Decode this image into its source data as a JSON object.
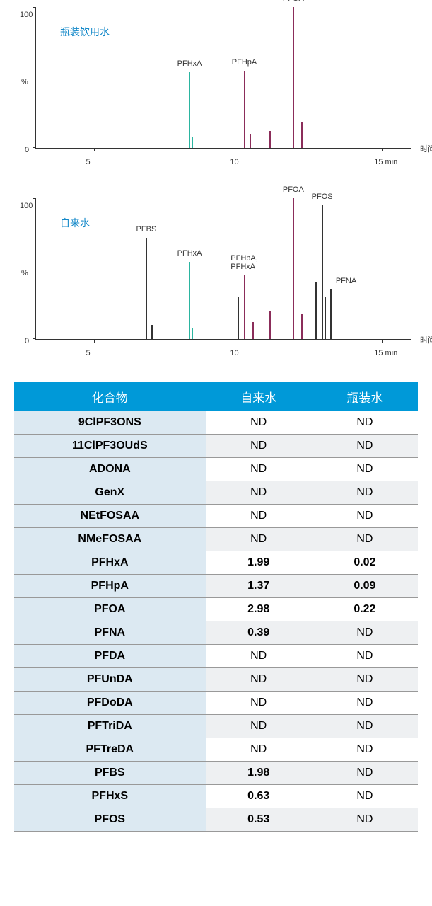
{
  "chart1": {
    "title": "瓶装饮用水",
    "ylabel": "%",
    "ylim": [
      0,
      100
    ],
    "xlim": [
      3,
      16
    ],
    "xticks": [
      5,
      10,
      15
    ],
    "xtick_labels": [
      "5",
      "10",
      "15 min"
    ],
    "x_axis_title": "时间",
    "background_color": "#ffffff",
    "peaks": [
      {
        "name": "PFHxA",
        "x": 8.3,
        "height": 54,
        "color": "#2bb5a0"
      },
      {
        "name": "PFHpA",
        "x": 10.2,
        "height": 55,
        "color": "#8b2d5a"
      },
      {
        "name": "PFOA",
        "x": 11.9,
        "height": 100,
        "color": "#8b2d5a"
      }
    ],
    "minor_peaks": [
      {
        "x": 8.4,
        "height": 8,
        "color": "#2bb5a0"
      },
      {
        "x": 10.4,
        "height": 10,
        "color": "#8b2d5a"
      },
      {
        "x": 11.1,
        "height": 12,
        "color": "#8b2d5a"
      },
      {
        "x": 12.2,
        "height": 18,
        "color": "#8b2d5a"
      }
    ]
  },
  "chart2": {
    "title": "自来水",
    "ylabel": "%",
    "ylim": [
      0,
      100
    ],
    "xlim": [
      3,
      16
    ],
    "xticks": [
      5,
      10,
      15
    ],
    "xtick_labels": [
      "5",
      "10",
      "15 min"
    ],
    "x_axis_title": "时间",
    "background_color": "#ffffff",
    "peaks": [
      {
        "name": "PFBS",
        "x": 6.8,
        "height": 72,
        "color": "#333333"
      },
      {
        "name": "PFHxA",
        "x": 8.3,
        "height": 55,
        "color": "#2bb5a0"
      },
      {
        "name": "PFHpA,\nPFHxA",
        "x": 10.2,
        "height": 45,
        "color": "#8b2d5a",
        "label_offset": -5
      },
      {
        "name": "PFOA",
        "x": 11.9,
        "height": 100,
        "color": "#8b2d5a"
      },
      {
        "name": "PFOS",
        "x": 12.9,
        "height": 95,
        "color": "#333333"
      },
      {
        "name": "PFNA",
        "x": 13.2,
        "height": 35,
        "color": "#333333",
        "label_right": true
      }
    ],
    "minor_peaks": [
      {
        "x": 7.0,
        "height": 10,
        "color": "#333333"
      },
      {
        "x": 8.4,
        "height": 8,
        "color": "#2bb5a0"
      },
      {
        "x": 10.0,
        "height": 30,
        "color": "#333333"
      },
      {
        "x": 10.5,
        "height": 12,
        "color": "#8b2d5a"
      },
      {
        "x": 11.1,
        "height": 20,
        "color": "#8b2d5a"
      },
      {
        "x": 12.2,
        "height": 18,
        "color": "#8b2d5a"
      },
      {
        "x": 12.7,
        "height": 40,
        "color": "#333333"
      },
      {
        "x": 13.0,
        "height": 30,
        "color": "#333333"
      }
    ]
  },
  "table": {
    "header_bg": "#0099d8",
    "row_label_bg": "#dce9f2",
    "alt_row_bg": "#eef0f2",
    "columns": [
      "化合物",
      "自来水",
      "瓶装水"
    ],
    "rows": [
      {
        "compound": "9ClPF3ONS",
        "tap": "ND",
        "bottle": "ND",
        "bold": false
      },
      {
        "compound": "11ClPF3OUdS",
        "tap": "ND",
        "bottle": "ND",
        "bold": false
      },
      {
        "compound": "ADONA",
        "tap": "ND",
        "bottle": "ND",
        "bold": false
      },
      {
        "compound": "GenX",
        "tap": "ND",
        "bottle": "ND",
        "bold": false
      },
      {
        "compound": "NEtFOSAA",
        "tap": "ND",
        "bottle": "ND",
        "bold": false
      },
      {
        "compound": "NMeFOSAA",
        "tap": "ND",
        "bottle": "ND",
        "bold": false
      },
      {
        "compound": "PFHxA",
        "tap": "1.99",
        "bottle": "0.02",
        "bold": true
      },
      {
        "compound": "PFHpA",
        "tap": "1.37",
        "bottle": "0.09",
        "bold": true
      },
      {
        "compound": "PFOA",
        "tap": "2.98",
        "bottle": "0.22",
        "bold": true
      },
      {
        "compound": "PFNA",
        "tap": "0.39",
        "bottle": "ND",
        "bold": true,
        "bottle_bold": false
      },
      {
        "compound": "PFDA",
        "tap": "ND",
        "bottle": "ND",
        "bold": false
      },
      {
        "compound": "PFUnDA",
        "tap": "ND",
        "bottle": "ND",
        "bold": false
      },
      {
        "compound": "PFDoDA",
        "tap": "ND",
        "bottle": "ND",
        "bold": false
      },
      {
        "compound": "PFTriDA",
        "tap": "ND",
        "bottle": "ND",
        "bold": false
      },
      {
        "compound": "PFTreDA",
        "tap": "ND",
        "bottle": "ND",
        "bold": false
      },
      {
        "compound": "PFBS",
        "tap": "1.98",
        "bottle": "ND",
        "bold": true,
        "bottle_bold": false
      },
      {
        "compound": "PFHxS",
        "tap": "0.63",
        "bottle": "ND",
        "bold": true,
        "bottle_bold": false
      },
      {
        "compound": "PFOS",
        "tap": "0.53",
        "bottle": "ND",
        "bold": true,
        "bottle_bold": false
      }
    ]
  }
}
